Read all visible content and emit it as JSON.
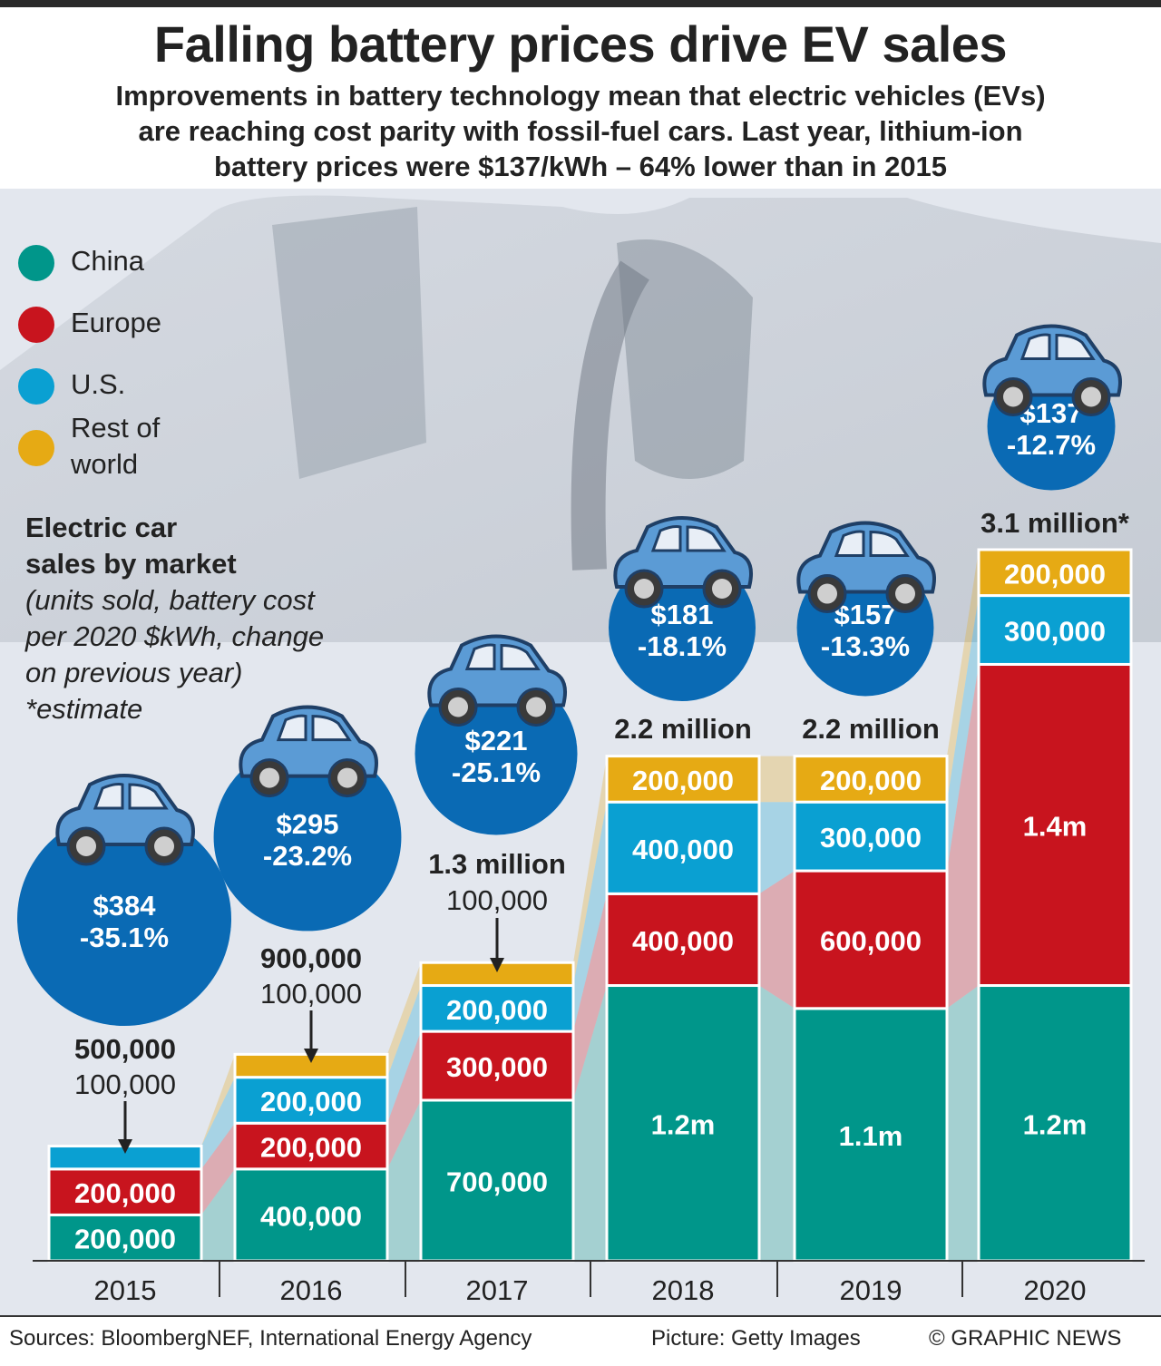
{
  "header": {
    "title": "Falling battery prices drive EV sales",
    "subtitle_lines": [
      "Improvements in battery technology mean that electric vehicles (EVs)",
      "are reaching cost parity with fossil-fuel cars. Last year, lithium-ion",
      "battery prices were $137/kWh – 64% lower than in 2015"
    ]
  },
  "legend": [
    {
      "label": "China",
      "color": "#00968a"
    },
    {
      "label": "Europe",
      "color": "#c8141e"
    },
    {
      "label": "U.S.",
      "color": "#0aa0d2"
    },
    {
      "label": "Rest of world",
      "label_lines": [
        "Rest of",
        "world"
      ],
      "color": "#e6aa14"
    }
  ],
  "note": {
    "heading_lines": [
      "Electric car",
      "sales by market"
    ],
    "detail_lines": [
      "(units sold, battery cost",
      "per 2020 $kWh, change",
      "on previous year)",
      "*estimate"
    ]
  },
  "footer": {
    "sources": "Sources: BloombergNEF, International Energy Agency",
    "picture": "Picture: Getty Images",
    "credit": "© GRAPHIC NEWS"
  },
  "chart_data": {
    "type": "bar",
    "stacked": true,
    "title": "Electric car sales by market",
    "categories": [
      "2015",
      "2016",
      "2017",
      "2018",
      "2019",
      "2020"
    ],
    "series": [
      {
        "name": "China",
        "color": "#00968a",
        "values": [
          200000,
          400000,
          700000,
          1200000,
          1100000,
          1200000
        ],
        "labels": [
          "200,000",
          "400,000",
          "700,000",
          "1.2m",
          "1.1m",
          "1.2m"
        ]
      },
      {
        "name": "Europe",
        "color": "#c8141e",
        "values": [
          200000,
          200000,
          300000,
          400000,
          600000,
          1400000
        ],
        "labels": [
          "200,000",
          "200,000",
          "300,000",
          "400,000",
          "600,000",
          "1.4m"
        ]
      },
      {
        "name": "U.S.",
        "color": "#0aa0d2",
        "values": [
          100000,
          200000,
          200000,
          400000,
          300000,
          300000
        ],
        "labels": [
          "",
          "200,000",
          "200,000",
          "400,000",
          "300,000",
          "300,000"
        ]
      },
      {
        "name": "Rest of world",
        "color": "#e6aa14",
        "values": [
          0,
          100000,
          100000,
          200000,
          200000,
          200000
        ],
        "labels": [
          "",
          "",
          "",
          "200,000",
          "200,000",
          "200,000"
        ]
      }
    ],
    "totals": [
      "500,000",
      "900,000",
      "1.3 million",
      "2.2 million",
      "2.2 million",
      "3.1 million*"
    ],
    "callouts": [
      {
        "year": "2015",
        "text": "100,000"
      },
      {
        "year": "2016",
        "text": "100,000"
      },
      {
        "year": "2017",
        "text": "100,000"
      }
    ],
    "battery_cost": [
      {
        "year": "2015",
        "price": "$384",
        "change": "-35.1%",
        "value": 384,
        "change_pct": -35.1
      },
      {
        "year": "2016",
        "price": "$295",
        "change": "-23.2%",
        "value": 295,
        "change_pct": -23.2
      },
      {
        "year": "2017",
        "price": "$221",
        "change": "-25.1%",
        "value": 221,
        "change_pct": -25.1
      },
      {
        "year": "2018",
        "price": "$181",
        "change": "-18.1%",
        "value": 181,
        "change_pct": -18.1
      },
      {
        "year": "2019",
        "price": "$157",
        "change": "-13.3%",
        "value": 157,
        "change_pct": -13.3
      },
      {
        "year": "2020",
        "price": "$137",
        "change": "-12.7%",
        "value": 137,
        "change_pct": -12.7
      }
    ],
    "ylabel": "units sold",
    "ylim": [
      0,
      3100000
    ]
  }
}
